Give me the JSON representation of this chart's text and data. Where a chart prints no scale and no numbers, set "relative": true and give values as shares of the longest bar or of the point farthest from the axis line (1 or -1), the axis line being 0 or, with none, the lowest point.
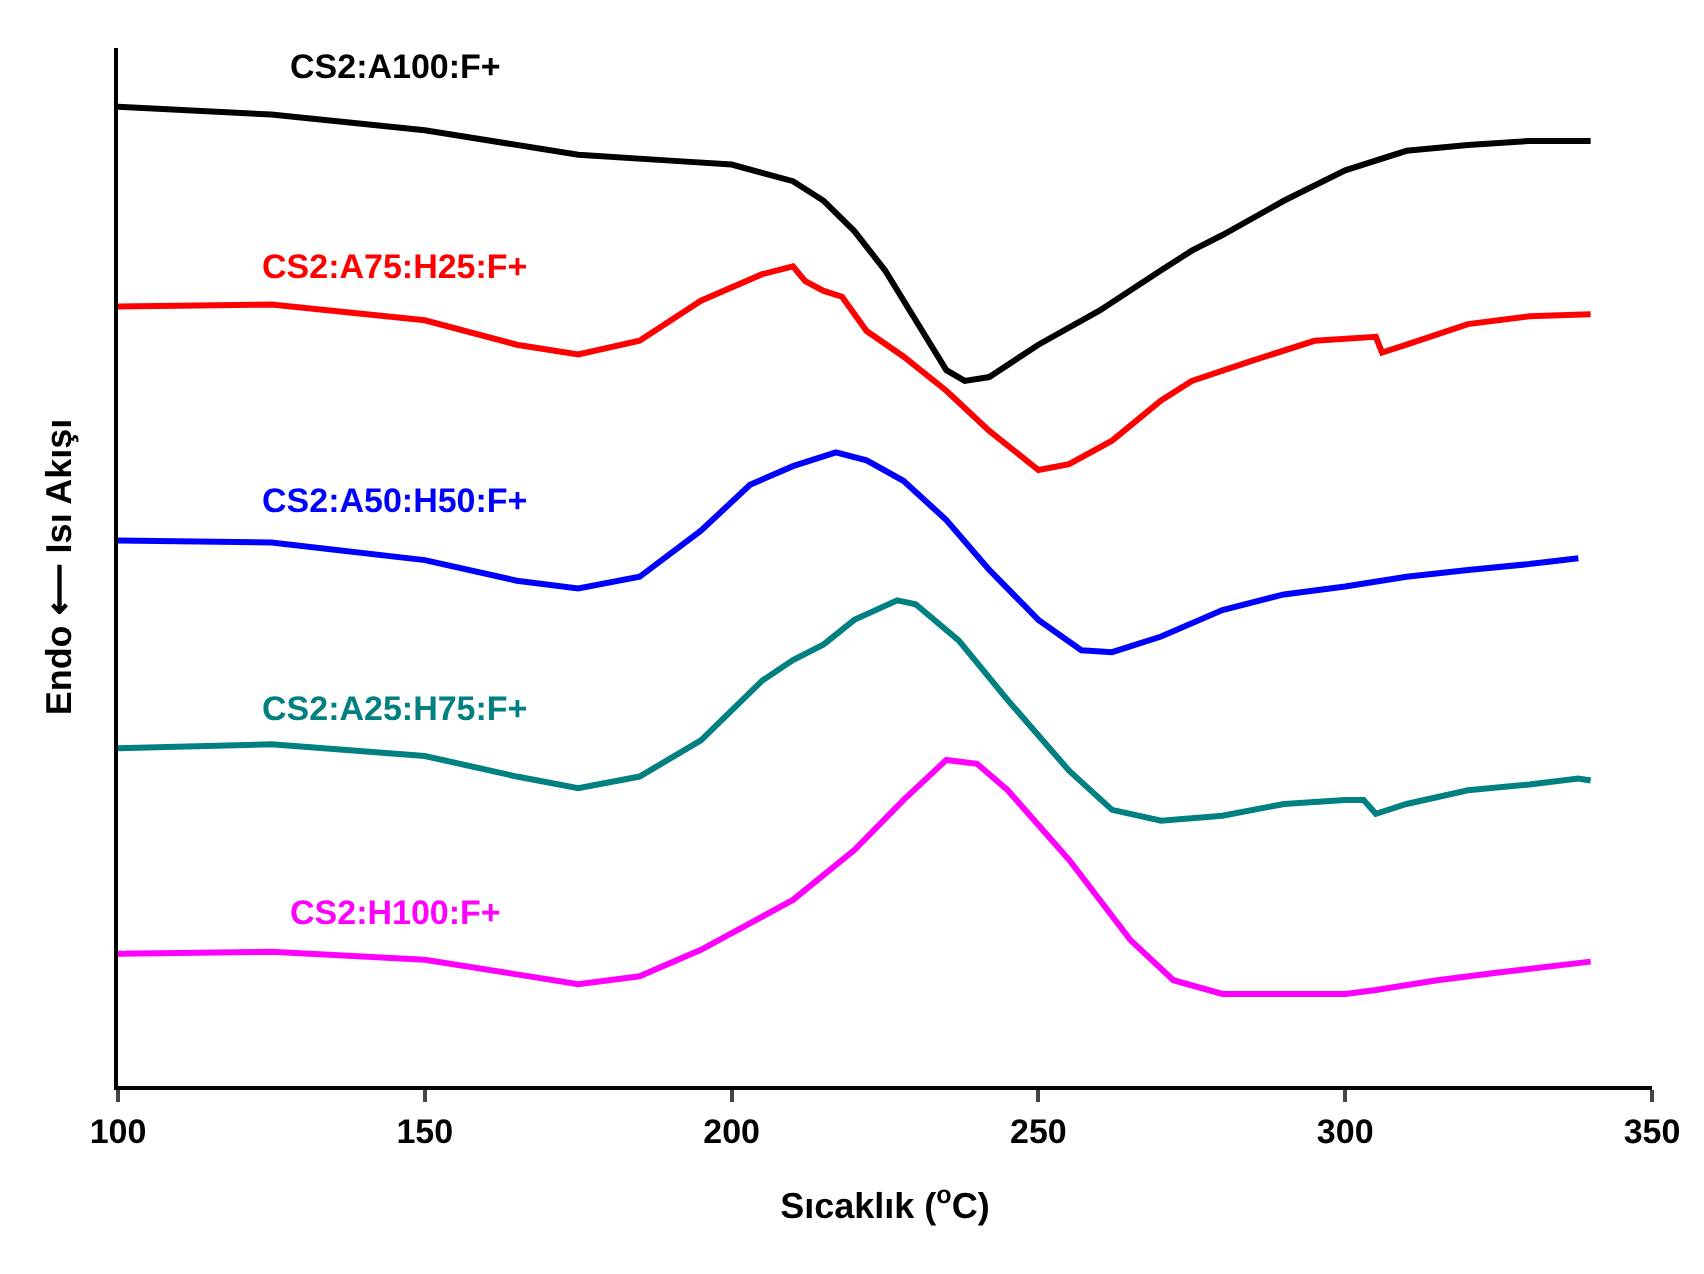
{
  "chart_data": {
    "type": "line",
    "relative": true,
    "xlabel": "Sıcaklık ($^{o}$C)",
    "ylabel": "Endo ⟵ Isı Akışı",
    "xlim": [
      100,
      350
    ],
    "xticks": [
      100,
      150,
      200,
      250,
      300,
      350
    ],
    "legend": false,
    "grid": false,
    "marker": "none",
    "line_style": "solid",
    "series": [
      {
        "name": "CS2:A100:F+",
        "color": "#000000",
        "x": [
          100,
          125,
          150,
          175,
          190,
          200,
          210,
          215,
          220,
          225,
          230,
          235,
          238,
          242,
          250,
          260,
          270,
          275,
          280,
          290,
          300,
          310,
          320,
          330,
          340
        ],
        "values": [
          1.0,
          0.992,
          0.976,
          0.951,
          0.945,
          0.941,
          0.924,
          0.904,
          0.873,
          0.833,
          0.782,
          0.731,
          0.72,
          0.724,
          0.757,
          0.792,
          0.833,
          0.853,
          0.869,
          0.904,
          0.935,
          0.955,
          0.961,
          0.965,
          0.965
        ]
      },
      {
        "name": "CS2:A75:H25:F+",
        "color": "#ff0000",
        "x": [
          100,
          125,
          150,
          165,
          175,
          185,
          195,
          205,
          210,
          212,
          215,
          218,
          222,
          228,
          235,
          242,
          250,
          255,
          262,
          270,
          275,
          285,
          295,
          305,
          306,
          310,
          320,
          330,
          340
        ],
        "values": [
          0.796,
          0.798,
          0.782,
          0.757,
          0.747,
          0.761,
          0.802,
          0.829,
          0.837,
          0.822,
          0.812,
          0.806,
          0.771,
          0.745,
          0.71,
          0.669,
          0.629,
          0.635,
          0.659,
          0.7,
          0.72,
          0.741,
          0.761,
          0.765,
          0.749,
          0.757,
          0.778,
          0.786,
          0.788
        ]
      },
      {
        "name": "CS2:A50:H50:F+",
        "color": "#0000ff",
        "x": [
          100,
          125,
          150,
          165,
          175,
          185,
          195,
          203,
          210,
          217,
          222,
          228,
          235,
          242,
          250,
          257,
          262,
          270,
          280,
          290,
          300,
          310,
          320,
          330,
          338
        ],
        "values": [
          0.557,
          0.555,
          0.537,
          0.516,
          0.508,
          0.52,
          0.567,
          0.614,
          0.633,
          0.647,
          0.639,
          0.618,
          0.578,
          0.527,
          0.476,
          0.445,
          0.443,
          0.459,
          0.486,
          0.502,
          0.51,
          0.52,
          0.527,
          0.533,
          0.539
        ]
      },
      {
        "name": "CS2:A25:H75:F+",
        "color": "#008080",
        "x": [
          100,
          125,
          150,
          165,
          175,
          185,
          195,
          205,
          210,
          215,
          220,
          227,
          230,
          237,
          245,
          255,
          262,
          270,
          280,
          290,
          300,
          303,
          305,
          310,
          320,
          330,
          338,
          340
        ],
        "values": [
          0.345,
          0.349,
          0.337,
          0.316,
          0.304,
          0.316,
          0.353,
          0.414,
          0.435,
          0.451,
          0.476,
          0.496,
          0.492,
          0.455,
          0.394,
          0.322,
          0.282,
          0.271,
          0.276,
          0.288,
          0.292,
          0.292,
          0.278,
          0.288,
          0.302,
          0.308,
          0.314,
          0.312
        ]
      },
      {
        "name": "CS2:H100:F+",
        "color": "#ff00ff",
        "x": [
          100,
          125,
          150,
          165,
          175,
          185,
          195,
          205,
          210,
          220,
          228,
          235,
          240,
          245,
          255,
          265,
          272,
          280,
          300,
          305,
          315,
          325,
          340
        ],
        "values": [
          0.135,
          0.137,
          0.129,
          0.114,
          0.104,
          0.112,
          0.139,
          0.173,
          0.19,
          0.241,
          0.292,
          0.333,
          0.329,
          0.302,
          0.231,
          0.149,
          0.108,
          0.094,
          0.094,
          0.098,
          0.108,
          0.116,
          0.127
        ]
      }
    ]
  }
}
